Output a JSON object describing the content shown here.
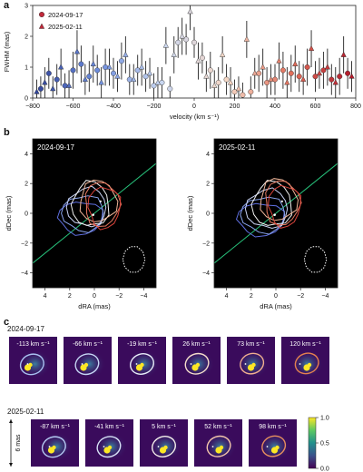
{
  "panels": {
    "a": "a",
    "b": "b",
    "c": "c"
  },
  "chart_data": [
    {
      "type": "scatter",
      "panel": "a",
      "xlabel": "velocity (km s⁻¹)",
      "ylabel": "FWHM (mas)",
      "xlim": [
        -800,
        800
      ],
      "ylim": [
        0,
        3
      ],
      "xticks": [
        -800,
        -600,
        -400,
        -200,
        0,
        200,
        400,
        600,
        800
      ],
      "yticks": [
        0,
        1,
        2,
        3
      ],
      "legend_position": "top-left",
      "series": [
        {
          "name": "2024-09-17",
          "marker": "circle",
          "x": [
            -760,
            -720,
            -680,
            -640,
            -600,
            -560,
            -520,
            -480,
            -440,
            -400,
            -360,
            -320,
            -280,
            -240,
            -200,
            -160,
            -120,
            -80,
            -40,
            0,
            40,
            80,
            120,
            160,
            200,
            240,
            280,
            320,
            360,
            400,
            440,
            480,
            520,
            560,
            600,
            640,
            680,
            720,
            760
          ],
          "y": [
            0.3,
            0.8,
            0.6,
            0.4,
            0.9,
            1.1,
            0.7,
            0.9,
            1.0,
            0.8,
            1.2,
            0.6,
            0.9,
            0.7,
            0.4,
            0.5,
            0.3,
            1.8,
            1.9,
            1.8,
            1.3,
            0.9,
            0.5,
            0.6,
            0.2,
            0.1,
            0.2,
            0.8,
            0.5,
            0.6,
            0.9,
            0.8,
            0.7,
            1.0,
            0.7,
            0.9,
            0.6,
            0.7,
            0.8
          ],
          "err": [
            0.4,
            0.5,
            0.5,
            0.4,
            0.6,
            0.6,
            0.5,
            0.5,
            0.6,
            0.5,
            0.6,
            0.5,
            0.5,
            0.5,
            0.4,
            0.5,
            0.4,
            0.5,
            0.5,
            0.5,
            0.5,
            0.6,
            0.5,
            0.5,
            0.4,
            0.4,
            0.5,
            0.6,
            0.5,
            0.5,
            0.6,
            0.6,
            0.5,
            0.6,
            0.5,
            0.6,
            0.5,
            0.6,
            0.5
          ]
        },
        {
          "name": "2025-02-11",
          "marker": "triangle",
          "x": [
            -780,
            -740,
            -700,
            -660,
            -620,
            -580,
            -540,
            -500,
            -460,
            -420,
            -380,
            -340,
            -300,
            -260,
            -220,
            -180,
            -140,
            -100,
            -60,
            -20,
            20,
            60,
            100,
            140,
            180,
            220,
            260,
            300,
            340,
            380,
            420,
            460,
            500,
            540,
            580,
            620,
            660,
            700,
            740,
            780
          ],
          "y": [
            0.2,
            0.5,
            0.3,
            1.0,
            0.4,
            1.5,
            0.6,
            1.1,
            0.5,
            1.0,
            0.7,
            1.4,
            0.6,
            1.0,
            0.8,
            0.5,
            1.7,
            1.4,
            2.0,
            2.8,
            1.2,
            0.7,
            0.4,
            1.4,
            0.5,
            0.3,
            1.9,
            0.8,
            1.0,
            0.6,
            1.2,
            0.5,
            1.1,
            0.6,
            1.6,
            0.8,
            1.0,
            0.5,
            1.4,
            0.7
          ],
          "err": [
            0.4,
            0.5,
            0.4,
            0.6,
            0.5,
            0.7,
            0.5,
            0.6,
            0.5,
            0.6,
            0.5,
            0.6,
            0.5,
            0.6,
            0.5,
            0.5,
            0.6,
            0.6,
            0.6,
            0.6,
            0.6,
            0.5,
            0.5,
            0.6,
            0.5,
            0.4,
            0.6,
            0.5,
            0.6,
            0.5,
            0.6,
            0.5,
            0.6,
            0.5,
            0.6,
            0.5,
            0.6,
            0.5,
            0.6,
            0.5
          ]
        }
      ]
    },
    {
      "type": "scatter",
      "panel": "b",
      "title": "2024-09-17",
      "xlabel": "dRA (mas)",
      "ylabel": "dDec (mas)",
      "xlim": [
        5,
        -5
      ],
      "ylim": [
        -5,
        5
      ],
      "xticks": [
        4,
        2,
        0,
        -2,
        -4
      ],
      "yticks": [
        4,
        2,
        0,
        -2,
        -4
      ],
      "background": "#000000",
      "line_slope": 0.67,
      "beam": {
        "center": [
          -3.2,
          -3.1
        ],
        "r": 0.9
      },
      "contours": [
        {
          "cx": 1.1,
          "cy": -0.3,
          "rx": 1.8,
          "ry": 1.1,
          "color": "#5f6fe0"
        },
        {
          "cx": 0.9,
          "cy": 0.0,
          "rx": 1.7,
          "ry": 1.2,
          "color": "#8aa4ec"
        },
        {
          "cx": 0.6,
          "cy": 0.4,
          "rx": 1.6,
          "ry": 1.3,
          "color": "#c9d3f4"
        },
        {
          "cx": 0.3,
          "cy": 0.6,
          "rx": 1.5,
          "ry": 1.5,
          "color": "#f2f2f2"
        },
        {
          "cx": -0.3,
          "cy": 0.8,
          "rx": 1.5,
          "ry": 1.4,
          "color": "#f1b79a"
        },
        {
          "cx": -0.6,
          "cy": 0.6,
          "rx": 1.4,
          "ry": 1.5,
          "color": "#e77a62"
        },
        {
          "cx": -0.8,
          "cy": 0.4,
          "rx": 1.3,
          "ry": 1.4,
          "color": "#d9443b"
        }
      ]
    },
    {
      "type": "scatter",
      "panel": "b",
      "title": "2025-02-11",
      "xlabel": "dRA (mas)",
      "ylabel": "dDec (mas)",
      "xlim": [
        5,
        -5
      ],
      "ylim": [
        -5,
        5
      ],
      "xticks": [
        4,
        2,
        0,
        -2,
        -4
      ],
      "yticks": [
        4,
        2,
        0,
        -2,
        -4
      ],
      "background": "#000000",
      "line_slope": 0.67,
      "beam": {
        "center": [
          -3.2,
          -3.1
        ],
        "r": 0.9
      },
      "contours": [
        {
          "cx": 1.2,
          "cy": -0.4,
          "rx": 1.9,
          "ry": 1.1,
          "color": "#5f6fe0"
        },
        {
          "cx": 1.0,
          "cy": -0.1,
          "rx": 1.8,
          "ry": 1.2,
          "color": "#8aa4ec"
        },
        {
          "cx": 0.7,
          "cy": 0.3,
          "rx": 1.7,
          "ry": 1.3,
          "color": "#c9d3f4"
        },
        {
          "cx": 0.3,
          "cy": 0.6,
          "rx": 1.6,
          "ry": 1.5,
          "color": "#f2f2f2"
        },
        {
          "cx": -0.2,
          "cy": 0.9,
          "rx": 1.5,
          "ry": 1.4,
          "color": "#f1b79a"
        },
        {
          "cx": -0.5,
          "cy": 0.7,
          "rx": 1.4,
          "ry": 1.5,
          "color": "#e77a62"
        },
        {
          "cx": -0.7,
          "cy": 0.5,
          "rx": 1.3,
          "ry": 1.4,
          "color": "#d9443b"
        }
      ]
    },
    {
      "type": "heatmap",
      "panel": "c",
      "colorbar": {
        "ticks": [
          "1.0",
          "0.5",
          "0.0"
        ],
        "range": [
          0,
          1
        ]
      },
      "scale_label": "6 mas",
      "rows": [
        {
          "date": "2024-09-17",
          "tiles": [
            {
              "label": "-113 km s⁻¹",
              "color": "#a9c1f0"
            },
            {
              "label": "-66 km s⁻¹",
              "color": "#c6d6f5"
            },
            {
              "label": "-19 km s⁻¹",
              "color": "#e6ebf7"
            },
            {
              "label": "26 km s⁻¹",
              "color": "#f5dccb"
            },
            {
              "label": "73 km s⁻¹",
              "color": "#f1ae8f"
            },
            {
              "label": "120 km s⁻¹",
              "color": "#e5804f"
            }
          ]
        },
        {
          "date": "2025-02-11",
          "tiles": [
            {
              "label": "-87 km s⁻¹",
              "color": "#b4c9f2"
            },
            {
              "label": "-41 km s⁻¹",
              "color": "#d7e0f6"
            },
            {
              "label": "5 km s⁻¹",
              "color": "#f2ece9"
            },
            {
              "label": "52 km s⁻¹",
              "color": "#f3c4aa"
            },
            {
              "label": "98 km s⁻¹",
              "color": "#e88f5e"
            }
          ]
        }
      ]
    }
  ]
}
